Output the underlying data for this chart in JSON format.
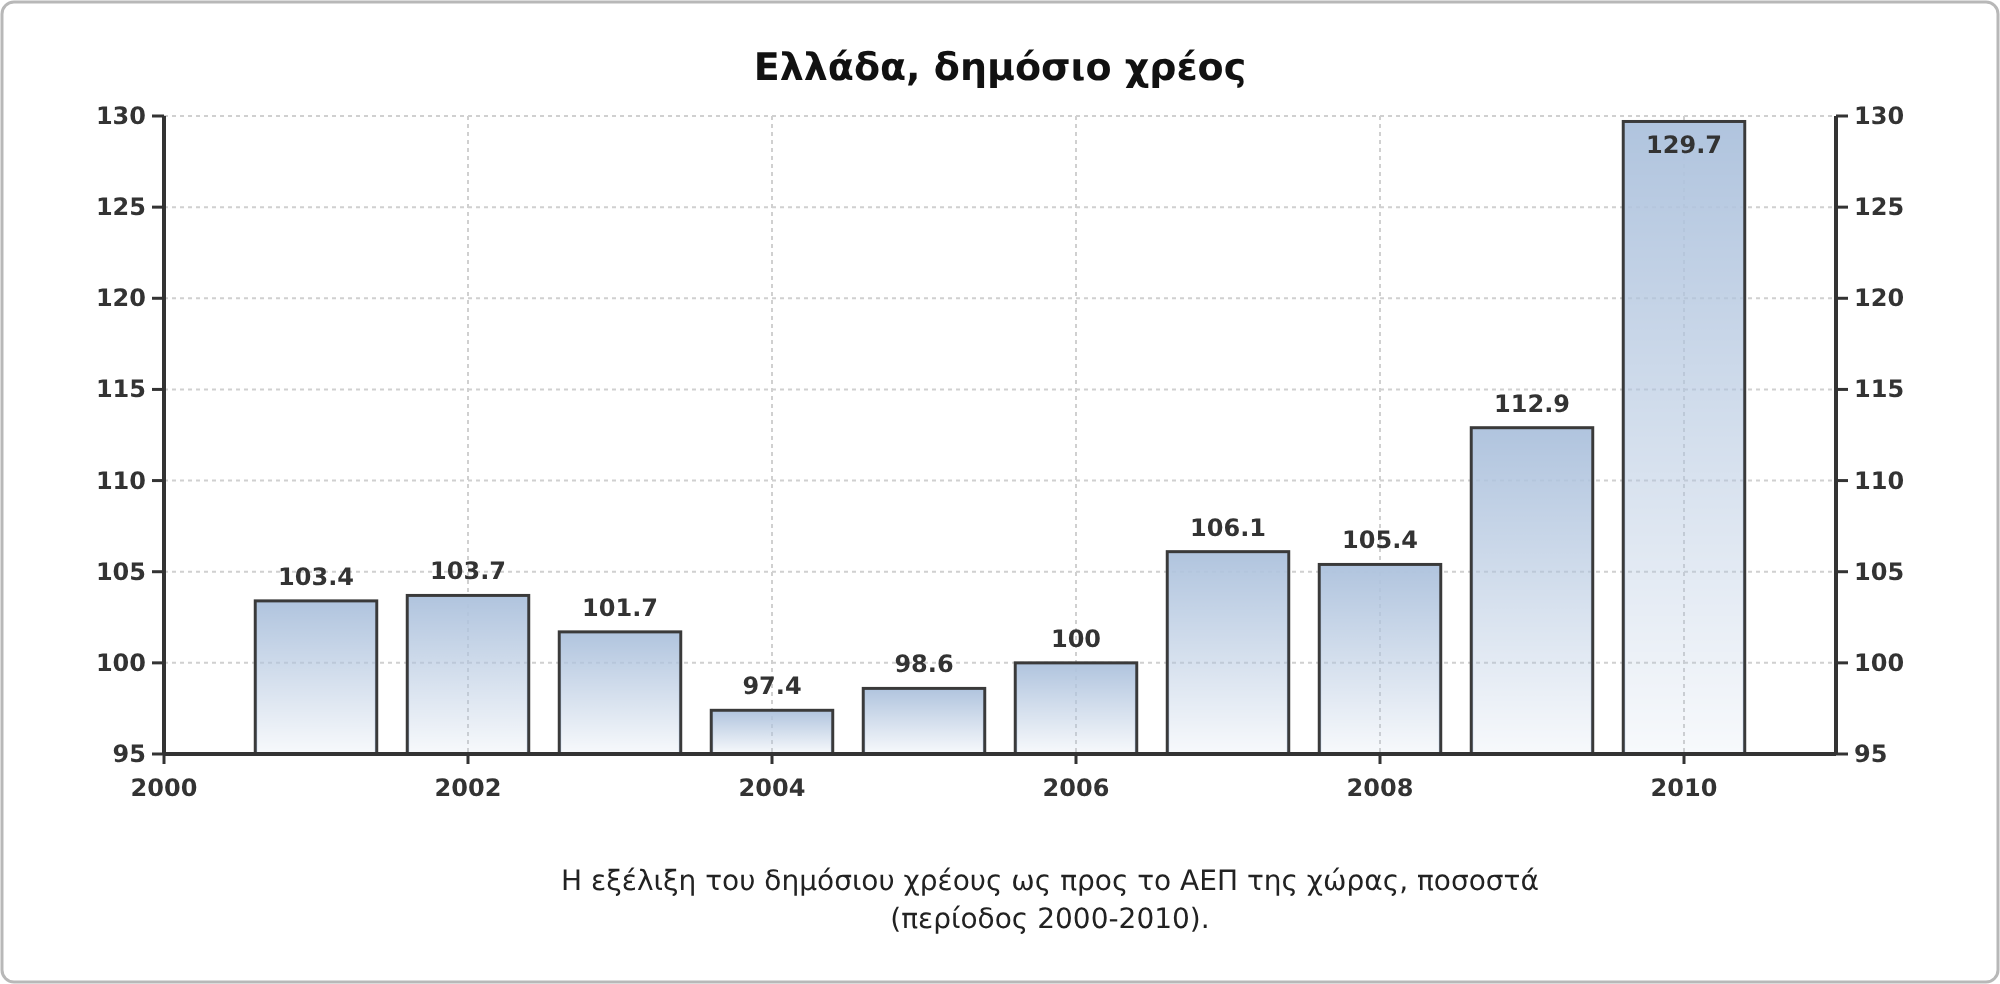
{
  "chart_data": {
    "type": "bar",
    "title": "Ελλάδα, δημόσιο χρέος",
    "x": [
      2001,
      2002,
      2003,
      2004,
      2005,
      2006,
      2007,
      2008,
      2009,
      2010
    ],
    "values": [
      103.4,
      103.7,
      101.7,
      97.4,
      98.6,
      100,
      106.1,
      105.4,
      112.9,
      129.7
    ],
    "color": "#b0c4de",
    "xlim": [
      2000,
      2011
    ],
    "xticks": [
      2000,
      2002,
      2004,
      2006,
      2008,
      2010
    ],
    "ylim": [
      95,
      130
    ],
    "yticks": [
      95,
      100,
      105,
      110,
      115,
      120,
      125,
      130
    ],
    "y2lim": [
      95,
      130
    ],
    "y2ticks": [
      95,
      100,
      105,
      110,
      115,
      120,
      125,
      130
    ],
    "grid": true,
    "data_labels": true,
    "annotations": [
      "Η εξέλιξη του δημόσιου χρέους ως προς το ΑΕΠ της χώρας, ποσοστά (περίοδος 2000-2010)."
    ]
  }
}
